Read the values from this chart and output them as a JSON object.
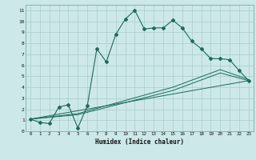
{
  "xlabel": "Humidex (Indice chaleur)",
  "bg_color": "#cce8e8",
  "grid_color": "#aacccc",
  "line_color": "#1a6b5a",
  "xlim": [
    -0.5,
    23.5
  ],
  "ylim": [
    0,
    11.5
  ],
  "xticks": [
    0,
    1,
    2,
    3,
    4,
    5,
    6,
    7,
    8,
    9,
    10,
    11,
    12,
    13,
    14,
    15,
    16,
    17,
    18,
    19,
    20,
    21,
    22,
    23
  ],
  "yticks": [
    0,
    1,
    2,
    3,
    4,
    5,
    6,
    7,
    8,
    9,
    10,
    11
  ],
  "main_x": [
    0,
    1,
    2,
    3,
    4,
    5,
    6,
    7,
    8,
    9,
    10,
    11,
    12,
    13,
    14,
    15,
    16,
    17,
    18,
    19,
    20,
    21,
    22,
    23
  ],
  "main_y": [
    1.1,
    0.8,
    0.7,
    2.2,
    2.4,
    0.3,
    2.3,
    7.5,
    6.3,
    8.8,
    10.2,
    11.0,
    9.3,
    9.4,
    9.4,
    10.1,
    9.4,
    8.2,
    7.5,
    6.6,
    6.6,
    6.5,
    5.5,
    4.6
  ],
  "trend1_x": [
    0,
    5,
    10,
    15,
    20,
    23
  ],
  "trend1_y": [
    1.1,
    1.5,
    2.6,
    3.7,
    5.3,
    4.6
  ],
  "trend2_x": [
    0,
    5,
    10,
    15,
    20,
    23
  ],
  "trend2_y": [
    1.1,
    1.6,
    2.8,
    4.0,
    5.6,
    4.7
  ],
  "trend3_x": [
    0,
    23
  ],
  "trend3_y": [
    1.1,
    4.6
  ],
  "xlabel_fontsize": 5.5,
  "tick_fontsize": 4.2
}
